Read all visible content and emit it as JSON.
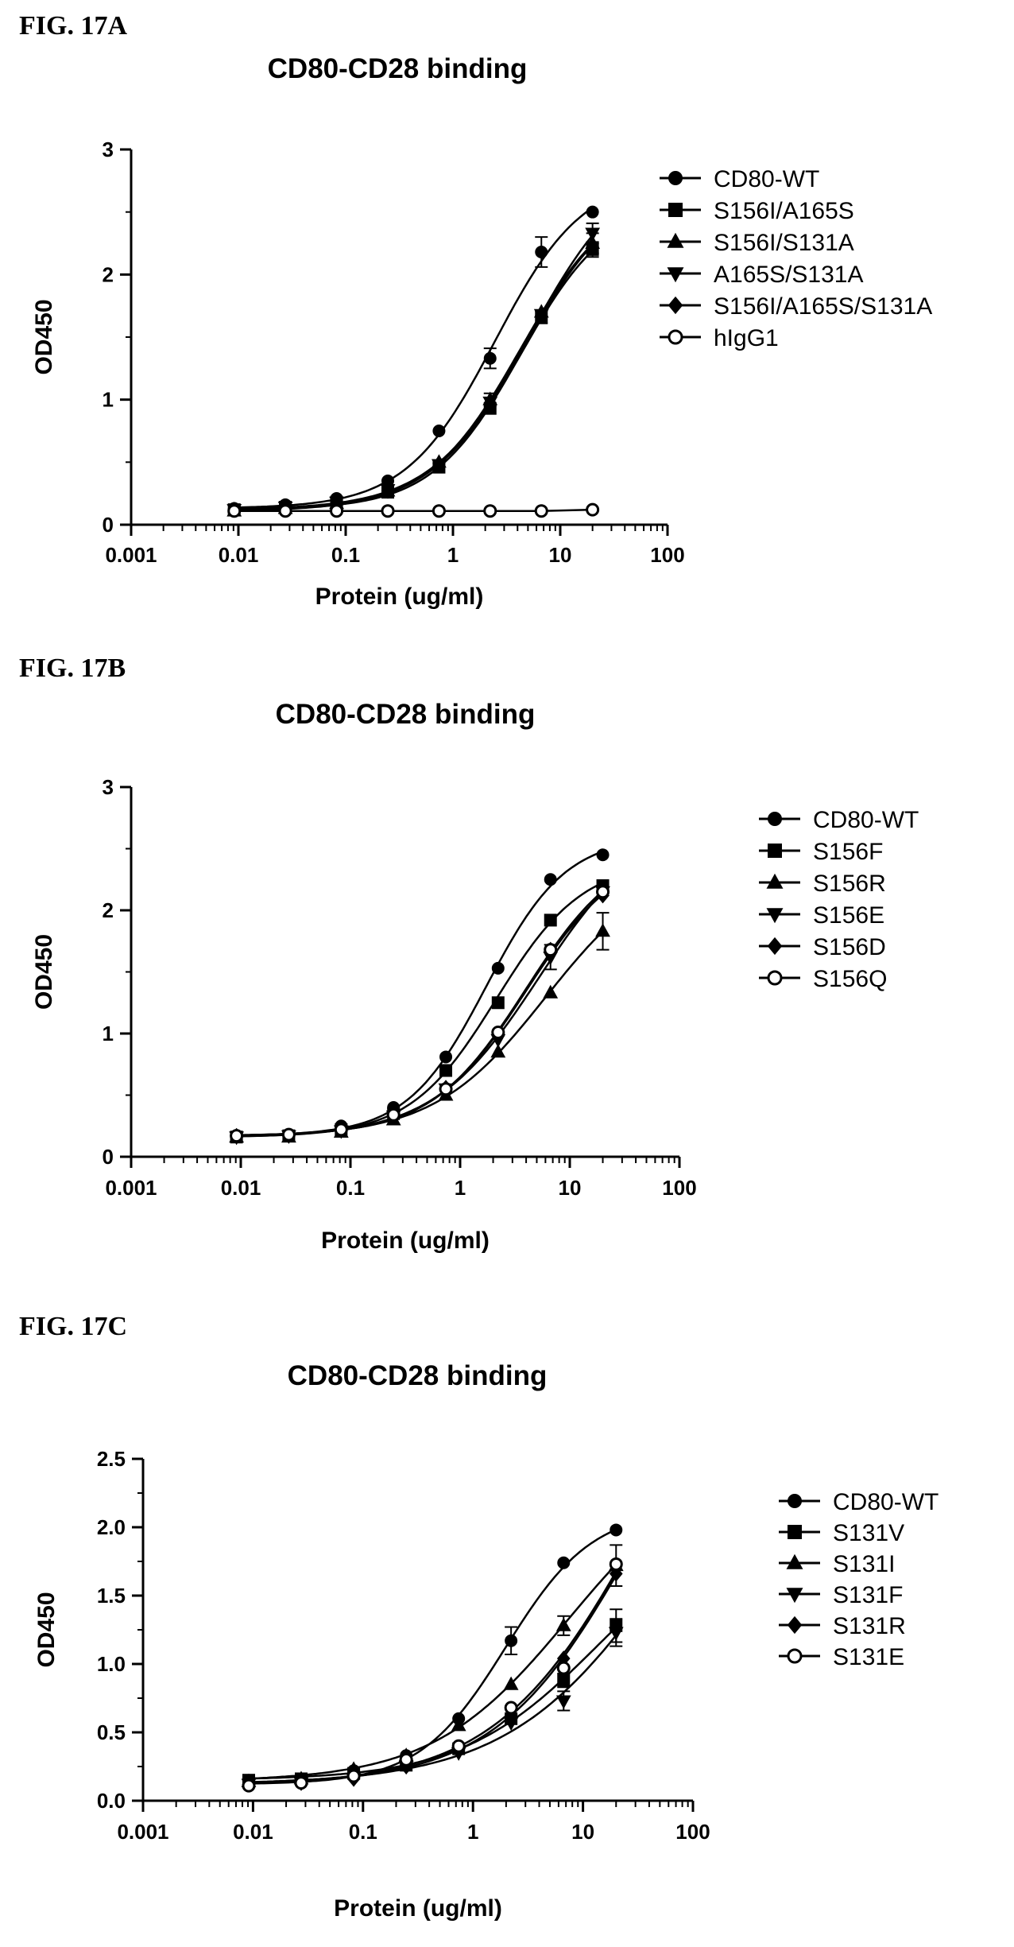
{
  "figures": [
    {
      "label": "FIG. 17A"
    },
    {
      "label": "FIG. 17B"
    },
    {
      "label": "FIG. 17C"
    }
  ],
  "chart_data": [
    {
      "type": "line",
      "title": "CD80-CD28 binding",
      "xlabel": "Protein (ug/ml)",
      "ylabel": "OD450",
      "xscale": "log",
      "xlim": [
        0.001,
        100
      ],
      "ylim": [
        0,
        3
      ],
      "xticks": [
        "0.001",
        "0.01",
        "0.1",
        "1",
        "10",
        "100"
      ],
      "yticks": [
        "0",
        "1",
        "2",
        "3"
      ],
      "grid": false,
      "legend_position": "right",
      "x": [
        0.00914,
        0.0274,
        0.0823,
        0.247,
        0.741,
        2.22,
        6.67,
        20
      ],
      "series": [
        {
          "name": "CD80-WT",
          "marker": "circle-filled",
          "values": [
            0.13,
            0.16,
            0.21,
            0.35,
            0.75,
            1.33,
            2.18,
            2.5
          ],
          "errors": [
            0,
            0,
            0,
            0,
            0,
            0.08,
            0.12,
            0
          ]
        },
        {
          "name": "S156I/A165S",
          "marker": "square-filled",
          "values": [
            0.12,
            0.14,
            0.18,
            0.26,
            0.46,
            0.93,
            1.66,
            2.2
          ],
          "errors": [
            0,
            0,
            0,
            0,
            0,
            0,
            0.05,
            0.06
          ]
        },
        {
          "name": "S156I/S131A",
          "marker": "triangle-up-filled",
          "values": [
            0.11,
            0.13,
            0.17,
            0.27,
            0.5,
            1.0,
            1.7,
            2.25
          ],
          "errors": [
            0,
            0,
            0,
            0,
            0,
            0.05,
            0,
            0.08
          ]
        },
        {
          "name": "A165S/S131A",
          "marker": "triangle-down-filled",
          "values": [
            0.12,
            0.14,
            0.18,
            0.28,
            0.48,
            0.98,
            1.68,
            2.33
          ],
          "errors": [
            0,
            0,
            0,
            0,
            0,
            0,
            0,
            0.08
          ]
        },
        {
          "name": "S156I/A165S/S131A",
          "marker": "diamond-filled",
          "values": [
            0.12,
            0.14,
            0.18,
            0.27,
            0.49,
            0.96,
            1.67,
            2.22
          ],
          "errors": [
            0,
            0,
            0,
            0,
            0,
            0,
            0,
            0
          ]
        },
        {
          "name": "hIgG1",
          "marker": "circle-open",
          "values": [
            0.11,
            0.11,
            0.11,
            0.11,
            0.11,
            0.11,
            0.11,
            0.12
          ],
          "errors": [
            0,
            0,
            0,
            0,
            0,
            0,
            0,
            0
          ]
        }
      ]
    },
    {
      "type": "line",
      "title": "CD80-CD28 binding",
      "xlabel": "Protein (ug/ml)",
      "ylabel": "OD450",
      "xscale": "log",
      "xlim": [
        0.001,
        100
      ],
      "ylim": [
        0,
        3
      ],
      "xticks": [
        "0.001",
        "0.01",
        "0.1",
        "1",
        "10",
        "100"
      ],
      "yticks": [
        "0",
        "1",
        "2",
        "3"
      ],
      "grid": false,
      "legend_position": "right",
      "x": [
        0.00914,
        0.0274,
        0.0823,
        0.247,
        0.741,
        2.22,
        6.67,
        20
      ],
      "series": [
        {
          "name": "CD80-WT",
          "marker": "circle-filled",
          "values": [
            0.17,
            0.18,
            0.25,
            0.4,
            0.81,
            1.53,
            2.25,
            2.45
          ],
          "errors": [
            0,
            0,
            0,
            0,
            0,
            0,
            0,
            0
          ]
        },
        {
          "name": "S156F",
          "marker": "square-filled",
          "values": [
            0.16,
            0.17,
            0.22,
            0.35,
            0.7,
            1.25,
            1.92,
            2.2
          ],
          "errors": [
            0,
            0,
            0,
            0,
            0,
            0,
            0,
            0
          ]
        },
        {
          "name": "S156R",
          "marker": "triangle-up-filled",
          "values": [
            0.16,
            0.16,
            0.2,
            0.3,
            0.5,
            0.85,
            1.33,
            1.83
          ],
          "errors": [
            0,
            0,
            0,
            0,
            0,
            0,
            0,
            0.15
          ]
        },
        {
          "name": "S156E",
          "marker": "triangle-down-filled",
          "values": [
            0.16,
            0.17,
            0.21,
            0.33,
            0.55,
            0.95,
            1.62,
            2.15
          ],
          "errors": [
            0,
            0,
            0,
            0,
            0,
            0,
            0.1,
            0
          ]
        },
        {
          "name": "S156D",
          "marker": "diamond-filled",
          "values": [
            0.17,
            0.17,
            0.22,
            0.33,
            0.56,
            0.98,
            1.68,
            2.12
          ],
          "errors": [
            0,
            0,
            0,
            0,
            0,
            0,
            0,
            0
          ]
        },
        {
          "name": "S156Q",
          "marker": "circle-open",
          "values": [
            0.17,
            0.18,
            0.22,
            0.34,
            0.55,
            1.01,
            1.68,
            2.15
          ],
          "errors": [
            0,
            0,
            0,
            0,
            0,
            0,
            0,
            0
          ]
        }
      ]
    },
    {
      "type": "line",
      "title": "CD80-CD28 binding",
      "xlabel": "Protein (ug/ml)",
      "ylabel": "OD450",
      "xscale": "log",
      "xlim": [
        0.001,
        100
      ],
      "ylim": [
        0,
        2.5
      ],
      "xticks": [
        "0.001",
        "0.01",
        "0.1",
        "1",
        "10",
        "100"
      ],
      "yticks": [
        "0.0",
        "0.5",
        "1.0",
        "1.5",
        "2.0",
        "2.5"
      ],
      "grid": false,
      "legend_position": "right",
      "x": [
        0.00914,
        0.0274,
        0.0823,
        0.247,
        0.741,
        2.22,
        6.67,
        20
      ],
      "series": [
        {
          "name": "CD80-WT",
          "marker": "circle-filled",
          "values": [
            0.12,
            0.14,
            0.22,
            0.33,
            0.6,
            1.17,
            1.74,
            1.98
          ],
          "errors": [
            0,
            0,
            0,
            0,
            0,
            0.1,
            0,
            0
          ]
        },
        {
          "name": "S131V",
          "marker": "square-filled",
          "values": [
            0.15,
            0.16,
            0.2,
            0.26,
            0.38,
            0.6,
            0.88,
            1.28
          ],
          "errors": [
            0,
            0,
            0,
            0,
            0,
            0,
            0.05,
            0.12
          ]
        },
        {
          "name": "S131I",
          "marker": "triangle-up-filled",
          "values": [
            0.14,
            0.16,
            0.23,
            0.33,
            0.55,
            0.85,
            1.28,
            1.72
          ],
          "errors": [
            0,
            0,
            0,
            0,
            0,
            0,
            0.07,
            0.15
          ]
        },
        {
          "name": "S131F",
          "marker": "triangle-down-filled",
          "values": [
            0.12,
            0.13,
            0.16,
            0.25,
            0.35,
            0.57,
            0.73,
            1.23
          ],
          "errors": [
            0,
            0,
            0,
            0,
            0,
            0,
            0.07,
            0.1
          ]
        },
        {
          "name": "S131R",
          "marker": "diamond-filled",
          "values": [
            0.12,
            0.13,
            0.16,
            0.25,
            0.38,
            0.63,
            1.04,
            1.66
          ],
          "errors": [
            0,
            0,
            0,
            0,
            0,
            0,
            0,
            0
          ]
        },
        {
          "name": "S131E",
          "marker": "circle-open",
          "values": [
            0.11,
            0.13,
            0.18,
            0.3,
            0.4,
            0.68,
            0.97,
            1.73
          ],
          "errors": [
            0,
            0,
            0,
            0,
            0,
            0,
            0,
            0
          ]
        }
      ]
    }
  ]
}
